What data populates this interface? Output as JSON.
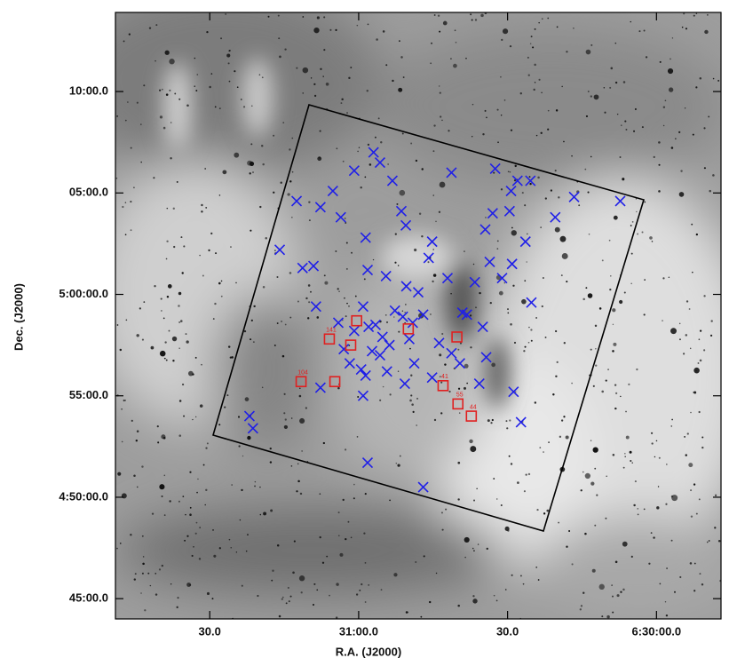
{
  "chart_data": {
    "type": "scatter",
    "xlabel": "R.A. (J2000)",
    "ylabel": "Dec. (J2000)",
    "xlim": [
      23509,
      23387
    ],
    "ylim": [
      284,
      313.9
    ],
    "xticks": [
      {
        "value": 23490,
        "label": "30.0"
      },
      {
        "value": 23460,
        "label": "31:00.0"
      },
      {
        "value": 23430,
        "label": "30.0"
      },
      {
        "value": 23400,
        "label": "6:30:00.0"
      }
    ],
    "yticks": [
      {
        "value": 310,
        "label": "10:00.0"
      },
      {
        "value": 305,
        "label": "05:00.0"
      },
      {
        "value": 300,
        "label": "5:00:00.0"
      },
      {
        "value": 295,
        "label": "55:00.0"
      },
      {
        "value": 290,
        "label": "4:50:00.0"
      },
      {
        "value": 285,
        "label": "45:00.0"
      }
    ],
    "series": [
      {
        "color": "#1f1fe8",
        "marker": "x",
        "x": [
          23472.5,
          23467.7,
          23465.2,
          23463.6,
          23460.9,
          23457.0,
          23455.7,
          23453.2,
          23451.4,
          23450.5,
          23458.6,
          23475.9,
          23471.3,
          23469.1,
          23458.2,
          23454.5,
          23450.4,
          23448.0,
          23445.9,
          23445.2,
          23442.1,
          23441.3,
          23439.1,
          23436.6,
          23434.5,
          23433.0,
          23432.5,
          23429.3,
          23428.0,
          23425.4,
          23429.6,
          23426.4,
          23433.6,
          23429.1,
          23431.1,
          23425.2,
          23420.4,
          23416.6,
          23407.3,
          23468.6,
          23464.1,
          23463.0,
          23460.9,
          23459.1,
          23458.0,
          23456.6,
          23455.2,
          23453.8,
          23452.7,
          23451.1,
          23449.8,
          23449.1,
          23447.0,
          23445.2,
          23443.8,
          23441.3,
          23439.6,
          23438.2,
          23435.0,
          23434.3,
          23435.7,
          23428.8,
          23427.3,
          23457.3,
          23455.7,
          23454.3,
          23459.5,
          23458.6,
          23459.1,
          23467.7,
          23450.7,
          23448.8,
          23482.0,
          23481.3,
          23458.2,
          23447.0,
          23461.8
        ],
        "y": [
          304.6,
          304.3,
          305.1,
          303.8,
          306.1,
          307.0,
          306.5,
          305.6,
          304.1,
          303.4,
          302.8,
          302.2,
          301.3,
          301.4,
          301.2,
          300.9,
          300.4,
          300.1,
          301.8,
          302.6,
          300.8,
          306.0,
          299.1,
          300.6,
          303.2,
          304.0,
          306.2,
          305.1,
          305.6,
          305.6,
          304.1,
          302.6,
          301.6,
          301.5,
          300.8,
          299.6,
          303.8,
          304.8,
          304.6,
          299.4,
          298.6,
          297.3,
          298.2,
          299.4,
          298.4,
          298.5,
          297.9,
          297.5,
          299.2,
          298.9,
          297.8,
          298.6,
          299.0,
          295.9,
          297.6,
          297.1,
          296.6,
          299.0,
          298.4,
          296.9,
          295.6,
          295.2,
          293.7,
          297.2,
          297.0,
          296.2,
          296.3,
          296.0,
          295.0,
          295.4,
          295.6,
          296.6,
          294.0,
          293.4,
          291.7,
          290.5,
          296.6
        ]
      },
      {
        "color": "#e02020",
        "marker": "square",
        "x": [
          23471.6,
          23464.8,
          23465.9,
          23461.6,
          23460.4,
          23450.0,
          23440.2,
          23443.0,
          23440.0,
          23437.3
        ],
        "y": [
          295.7,
          295.7,
          297.8,
          297.5,
          298.7,
          298.3,
          297.9,
          295.5,
          294.6,
          294.0
        ],
        "labels": [
          "104",
          null,
          "141",
          null,
          null,
          null,
          null,
          "41",
          "55",
          "44"
        ]
      }
    ]
  }
}
